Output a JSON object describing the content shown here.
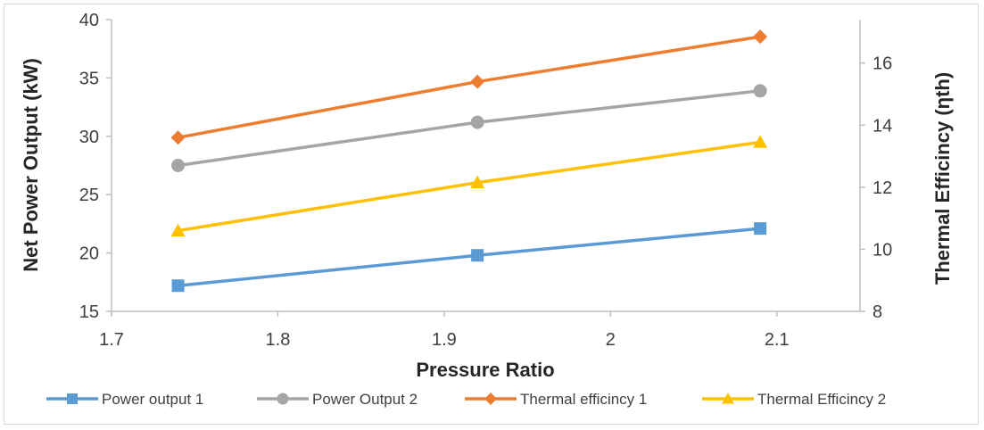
{
  "chart_data": {
    "type": "line",
    "title": "",
    "xlabel": "Pressure Ratio",
    "ylabel": "Net Power Output (kW)",
    "y2label": "Thermal Efficincy (ηth)",
    "xlim": [
      1.7,
      2.15
    ],
    "ylim": [
      15,
      40
    ],
    "y2lim": [
      8,
      17.4
    ],
    "x_ticks": [
      "1.7",
      "1.8",
      "1.9",
      "2",
      "2.1"
    ],
    "y_ticks": [
      "15",
      "20",
      "25",
      "30",
      "35",
      "40"
    ],
    "y2_ticks": [
      "8",
      "10",
      "12",
      "14",
      "16"
    ],
    "x": [
      1.74,
      1.92,
      2.09
    ],
    "grid": false,
    "legend_position": "bottom",
    "series": [
      {
        "name": "Power output 1",
        "axis": "left",
        "values": [
          17.2,
          19.8,
          22.1
        ],
        "color": "#5b9bd5",
        "marker": "square"
      },
      {
        "name": "Power Output 2",
        "axis": "left",
        "values": [
          27.5,
          31.2,
          33.9
        ],
        "color": "#a5a5a5",
        "marker": "circle"
      },
      {
        "name": "Thermal efficincy 1",
        "axis": "right",
        "values": [
          13.6,
          15.4,
          16.85
        ],
        "color": "#ed7d31",
        "marker": "diamond"
      },
      {
        "name": "Thermal Efficincy 2",
        "axis": "right",
        "values": [
          10.6,
          12.15,
          13.45
        ],
        "color": "#ffc000",
        "marker": "triangle"
      }
    ]
  }
}
